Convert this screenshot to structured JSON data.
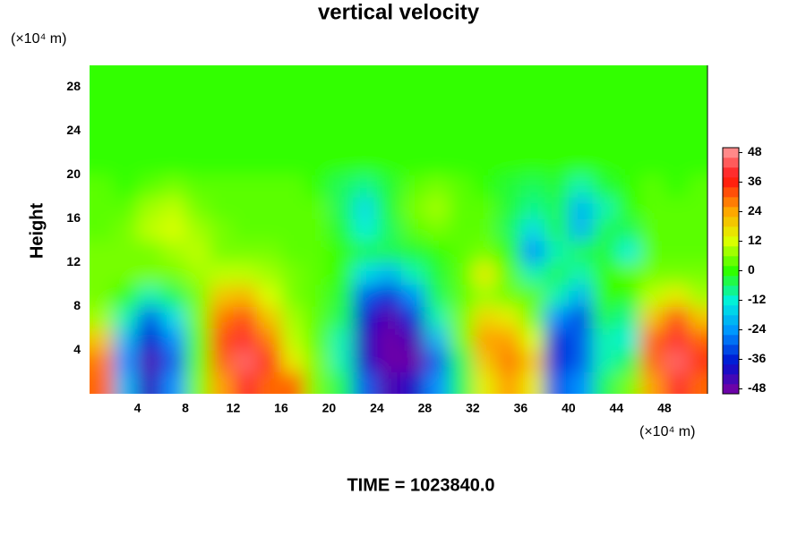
{
  "chart_data": {
    "type": "contour",
    "title": "vertical velocity",
    "ylabel": "Height",
    "y_unit": "(×10⁴ m)",
    "x_unit": "(×10⁴ m)",
    "footer": "TIME = 1023840.0",
    "xlim": [
      0,
      51.6
    ],
    "ylim": [
      0,
      30
    ],
    "xticks": [
      4,
      8,
      12,
      16,
      20,
      24,
      28,
      32,
      36,
      40,
      44,
      48
    ],
    "yticks": [
      4,
      8,
      12,
      16,
      20,
      24,
      28
    ],
    "zlim": [
      -50,
      50
    ],
    "zticks": [
      -48,
      -36,
      -24,
      -12,
      0,
      12,
      24,
      36,
      48
    ],
    "colorscale": [
      "#8000a0",
      "#0010d0",
      "#0090ff",
      "#00f0e0",
      "#30ff00",
      "#e0ff00",
      "#ffa000",
      "#ff1010",
      "#ffa0a0"
    ],
    "grid": false,
    "x_bins": [
      0,
      2,
      4,
      6,
      8,
      10,
      12,
      14,
      16,
      18,
      20,
      22,
      24,
      26,
      28,
      30,
      32,
      34,
      36,
      38,
      40,
      42,
      44,
      46,
      48,
      50,
      52
    ],
    "y_bins": [
      0,
      2,
      4,
      6,
      8,
      10,
      12,
      14,
      16,
      18,
      20,
      30
    ],
    "z": [
      [
        30,
        -20,
        -42,
        -25,
        5,
        25,
        40,
        30,
        30,
        5,
        -5,
        -30,
        -45,
        -40,
        -25,
        -5,
        15,
        25,
        15,
        -30,
        -25,
        -5,
        5,
        25,
        40,
        30
      ],
      [
        28,
        -25,
        -45,
        -30,
        3,
        30,
        45,
        35,
        15,
        5,
        -10,
        -40,
        -48,
        -48,
        -30,
        -5,
        20,
        28,
        20,
        -35,
        -30,
        -10,
        -5,
        30,
        45,
        35
      ],
      [
        20,
        -20,
        -38,
        -25,
        3,
        32,
        40,
        28,
        10,
        3,
        -10,
        -42,
        -48,
        -45,
        -20,
        5,
        25,
        25,
        12,
        -35,
        -30,
        -10,
        -12,
        30,
        40,
        30
      ],
      [
        8,
        -10,
        -30,
        -15,
        5,
        28,
        32,
        20,
        8,
        3,
        -5,
        -38,
        -46,
        -35,
        -10,
        5,
        18,
        15,
        5,
        -25,
        -32,
        -5,
        -8,
        20,
        32,
        20
      ],
      [
        5,
        0,
        -10,
        -5,
        5,
        20,
        22,
        12,
        5,
        3,
        -3,
        -30,
        -35,
        -25,
        -5,
        3,
        8,
        5,
        3,
        -10,
        -20,
        0,
        0,
        10,
        15,
        8
      ],
      [
        5,
        5,
        5,
        5,
        8,
        10,
        10,
        8,
        5,
        3,
        0,
        -15,
        -20,
        -10,
        -3,
        3,
        15,
        3,
        -10,
        -5,
        -10,
        0,
        3,
        5,
        5,
        5
      ],
      [
        5,
        5,
        5,
        8,
        10,
        5,
        5,
        5,
        3,
        3,
        0,
        -5,
        -5,
        -3,
        0,
        3,
        5,
        0,
        -25,
        -10,
        -5,
        -3,
        -12,
        3,
        3,
        3
      ],
      [
        3,
        5,
        10,
        12,
        8,
        5,
        3,
        3,
        3,
        3,
        -3,
        -12,
        -5,
        3,
        5,
        3,
        3,
        -5,
        -15,
        -5,
        -20,
        -5,
        -5,
        3,
        3,
        3
      ],
      [
        3,
        3,
        8,
        10,
        5,
        3,
        3,
        3,
        3,
        3,
        -5,
        -15,
        -3,
        5,
        8,
        3,
        3,
        -3,
        -8,
        -5,
        -20,
        -10,
        0,
        3,
        3,
        3
      ],
      [
        3,
        0,
        3,
        5,
        3,
        3,
        3,
        3,
        3,
        0,
        -5,
        -8,
        -3,
        3,
        5,
        3,
        0,
        -3,
        -5,
        -3,
        -10,
        -3,
        0,
        3,
        0,
        3
      ],
      [
        0,
        0,
        0,
        0,
        0,
        0,
        0,
        0,
        0,
        0,
        0,
        0,
        0,
        0,
        0,
        0,
        0,
        0,
        0,
        0,
        0,
        0,
        0,
        0,
        0,
        0
      ]
    ]
  }
}
